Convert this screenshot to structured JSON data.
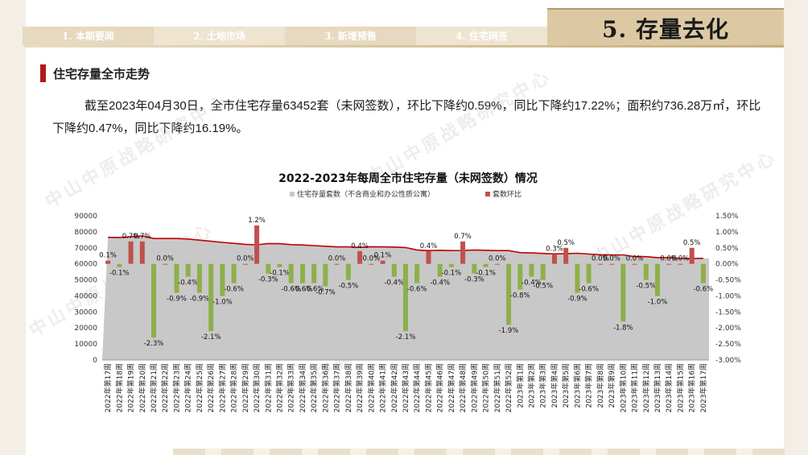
{
  "nav": {
    "tabs": [
      "1. 本期要闻",
      "2. 土地市场",
      "3. 新增预售",
      "4. 住宅网签"
    ]
  },
  "section": {
    "title": "5. 存量去化"
  },
  "subhead": {
    "title": "住宅存量全市走势"
  },
  "summary": {
    "text": "截至2023年04月30日，全市住宅存量63452套（未网签数），环比下降约0.59%，同比下降约17.22%；面积约736.28万㎡，环比下降约0.47%，同比下降约16.19%。"
  },
  "watermark": {
    "text": "中山中原战略研究中心"
  },
  "colors": {
    "area": "#c8c8c8",
    "line": "#c00000",
    "pos": "#c0504d",
    "neg": "#8db04a",
    "accent": "#b01a1a"
  },
  "chart_data": {
    "type": "area",
    "title": "2022-2023年每周全市住宅存量（未网签数）情况",
    "legend": [
      "住宅存量套数（不含商业和办公性质公寓）",
      "套数环比"
    ],
    "legend_position": "top",
    "ylim_left": [
      0,
      90000
    ],
    "ylim_right": [
      -3.0,
      1.5
    ],
    "yticks_left": [
      "0",
      "10000",
      "20000",
      "30000",
      "40000",
      "50000",
      "60000",
      "70000",
      "80000",
      "90000"
    ],
    "yticks_right": [
      "-3.00%",
      "-2.50%",
      "-2.00%",
      "-1.50%",
      "-1.00%",
      "-0.50%",
      "0.00%",
      "0.50%",
      "1.00%",
      "1.50%"
    ],
    "categories": [
      "2022年第17周",
      "2022年第18周",
      "2022年第19周",
      "2022年第20周",
      "2022年第21周",
      "2022年第22周",
      "2022年第23周",
      "2022年第24周",
      "2022年第25周",
      "2022年第26周",
      "2022年第27周",
      "2022年第28周",
      "2022年第29周",
      "2022年第30周",
      "2022年第31周",
      "2022年第32周",
      "2022年第33周",
      "2022年第34周",
      "2022年第35周",
      "2022年第36周",
      "2022年第37周",
      "2022年第38周",
      "2022年第39周",
      "2022年第40周",
      "2022年第41周",
      "2022年第42周",
      "2022年第43周",
      "2022年第44周",
      "2022年第45周",
      "2022年第46周",
      "2022年第47周",
      "2022年第48周",
      "2022年第49周",
      "2022年第50周",
      "2022年第51周",
      "2022年第52周",
      "2023年第1周",
      "2023年第2周",
      "2023年第3周",
      "2023年第4周",
      "2023年第5周",
      "2023年第6周",
      "2023年第7周",
      "2023年第8周",
      "2023年第9周",
      "2023年第10周",
      "2023年第11周",
      "2023年第12周",
      "2023年第13周",
      "2023年第14周",
      "2023年第15周",
      "2023年第16周",
      "2023年第17周"
    ],
    "stock": [
      76600,
      76500,
      77000,
      77500,
      75800,
      75800,
      75800,
      75500,
      74800,
      74100,
      73400,
      72800,
      72200,
      71900,
      72700,
      72600,
      72000,
      71800,
      71400,
      71000,
      70600,
      70600,
      70300,
      70700,
      70600,
      70500,
      70200,
      68700,
      68300,
      68500,
      68300,
      68400,
      68700,
      68500,
      68300,
      68300,
      67000,
      66800,
      66500,
      66200,
      66400,
      66600,
      66100,
      65700,
      65600,
      65600,
      64500,
      64500,
      63900,
      63900,
      63500,
      63300,
      63452
    ],
    "mom_pct": [
      0.1,
      -0.1,
      0.7,
      0.7,
      -2.3,
      0.0,
      -0.9,
      -0.4,
      -0.9,
      -2.1,
      -1.0,
      -0.6,
      0.0,
      1.2,
      -0.3,
      -0.1,
      -0.6,
      -0.6,
      -0.6,
      -0.7,
      0.0,
      -0.5,
      0.4,
      0.0,
      0.1,
      -0.4,
      -2.1,
      -0.6,
      0.4,
      -0.4,
      -0.1,
      0.7,
      -0.3,
      -0.1,
      0.0,
      -1.9,
      -0.8,
      -0.4,
      -0.5,
      0.3,
      0.5,
      -0.9,
      -0.6,
      0.0,
      0.0,
      -1.8,
      0.0,
      -0.5,
      -1.0,
      0.0,
      0.0,
      0.5,
      -0.6
    ],
    "data_labels": [
      "0.1%",
      "-0.1%",
      "0.7%",
      "0.7%",
      "-2.3%",
      "0.0%",
      "-0.9%",
      "-0.4%",
      "-0.9%",
      "-2.1%",
      "-1.0%",
      "-0.6%",
      "0.0%",
      "1.2%",
      "-0.3%",
      "-0.1%",
      "-0.6%",
      "-0.6%",
      "-0.6%",
      "-0.7%",
      "0.0%",
      "-0.5%",
      "0.4%",
      "0.0%",
      "0.1%",
      "-0.4%",
      "-2.1%",
      "-0.6%",
      "0.4%",
      "-0.4%",
      "-0.1%",
      "0.7%",
      "-0.3%",
      "-0.1%",
      "0.0%",
      "-1.9%",
      "-0.8%",
      "-0.4%",
      "-0.5%",
      "0.3%",
      "0.5%",
      "-0.9%",
      "-0.6%",
      "0.0%",
      "0.0%",
      "-1.8%",
      "0.0%",
      "-0.5%",
      "-1.0%",
      "0.0%",
      "0.0%",
      "0.5%",
      "-0.6%"
    ]
  }
}
